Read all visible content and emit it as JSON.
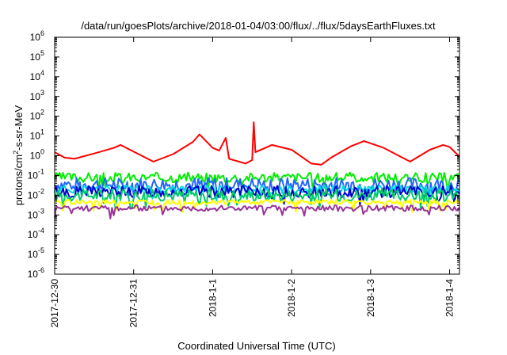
{
  "chart_data": {
    "type": "line",
    "title": "/data/run/goesPlots/archive/2018-01-04/03:00/flux/../flux/5daysEarthFluxes.txt",
    "xlabel": "Coordinated Universal Time (UTC)",
    "ylabel_parts": [
      "protons/cm",
      "2",
      "-s-sr-MeV"
    ],
    "y_scale": "log",
    "ylim_exponent": [
      -6,
      6
    ],
    "y_ticks": [
      {
        "base": "10",
        "exp": "6",
        "e": 6
      },
      {
        "base": "10",
        "exp": "5",
        "e": 5
      },
      {
        "base": "10",
        "exp": "4",
        "e": 4
      },
      {
        "base": "10",
        "exp": "3",
        "e": 3
      },
      {
        "base": "10",
        "exp": "2",
        "e": 2
      },
      {
        "base": "10",
        "exp": "1",
        "e": 1
      },
      {
        "base": "10",
        "exp": "0",
        "e": 0
      },
      {
        "base": "10",
        "exp": "-1",
        "e": -1
      },
      {
        "base": "10",
        "exp": "-2",
        "e": -2
      },
      {
        "base": "10",
        "exp": "-3",
        "e": -3
      },
      {
        "base": "10",
        "exp": "-4",
        "e": -4
      },
      {
        "base": "10",
        "exp": "-5",
        "e": -5
      },
      {
        "base": "10",
        "exp": "-6",
        "e": -6
      }
    ],
    "x_range_days": [
      "2017-12-30",
      "2018-01-04T03:00"
    ],
    "x_ticks": [
      {
        "label": "2017-12-30",
        "date": "2017-12-30"
      },
      {
        "label": "2017-12-31",
        "date": "2017-12-31"
      },
      {
        "label": "2018-1-1",
        "date": "2018-01-01"
      },
      {
        "label": "2018-1-2",
        "date": "2018-01-02"
      },
      {
        "label": "2018-1-3",
        "date": "2018-01-03"
      },
      {
        "label": "2018-1-4",
        "date": "2018-01-04"
      }
    ],
    "grid": false,
    "legend": "none",
    "series": [
      {
        "color": "#ff0000",
        "points": [
          [
            "2017-12-30T00:00",
            1.5
          ],
          [
            "2017-12-30T03:00",
            0.8
          ],
          [
            "2017-12-30T06:00",
            0.7
          ],
          [
            "2017-12-30T12:00",
            1.3
          ],
          [
            "2017-12-30T18:00",
            2.5
          ],
          [
            "2017-12-30T20:00",
            3.5
          ],
          [
            "2017-12-31T00:00",
            1.6
          ],
          [
            "2017-12-31T06:00",
            0.5
          ],
          [
            "2017-12-31T12:00",
            1.2
          ],
          [
            "2017-12-31T18:00",
            5
          ],
          [
            "2017-12-31T20:00",
            12
          ],
          [
            "2018-01-01T00:00",
            2.5
          ],
          [
            "2018-01-01T02:00",
            1.8
          ],
          [
            "2018-01-01T04:00",
            8
          ],
          [
            "2018-01-01T05:00",
            0.7
          ],
          [
            "2018-01-01T08:00",
            0.5
          ],
          [
            "2018-01-01T10:00",
            0.4
          ],
          [
            "2018-01-01T12:00",
            0.6
          ],
          [
            "2018-01-01T12:30",
            50
          ],
          [
            "2018-01-01T13:00",
            1.5
          ],
          [
            "2018-01-01T18:00",
            3.5
          ],
          [
            "2018-01-02T00:00",
            2
          ],
          [
            "2018-01-02T06:00",
            0.4
          ],
          [
            "2018-01-02T09:00",
            0.35
          ],
          [
            "2018-01-02T12:00",
            0.8
          ],
          [
            "2018-01-02T18:00",
            3
          ],
          [
            "2018-01-02T22:00",
            5.5
          ],
          [
            "2018-01-03T04:00",
            2.5
          ],
          [
            "2018-01-03T12:00",
            0.5
          ],
          [
            "2018-01-03T18:00",
            2
          ],
          [
            "2018-01-03T22:00",
            3.5
          ],
          [
            "2018-01-04T00:00",
            2.8
          ],
          [
            "2018-01-04T03:00",
            0.9
          ]
        ]
      },
      {
        "color": "#00ee00",
        "base": 0.08,
        "jitter": 0.25,
        "seed": 3
      },
      {
        "color": "#2266ff",
        "base": 0.035,
        "jitter": 0.35,
        "seed": 7
      },
      {
        "color": "#00dddd",
        "base": 0.02,
        "jitter": 0.2,
        "seed": 11
      },
      {
        "color": "#0000cc",
        "base": 0.015,
        "jitter": 0.3,
        "seed": 13
      },
      {
        "color": "#00cc66",
        "base": 0.01,
        "jitter": 0.3,
        "seed": 17
      },
      {
        "color": "#ffff00",
        "base": 0.0045,
        "jitter": 0.12,
        "seed": 19
      },
      {
        "color": "#993399",
        "base": 0.0022,
        "jitter": 0.15,
        "seed": 23
      }
    ]
  }
}
